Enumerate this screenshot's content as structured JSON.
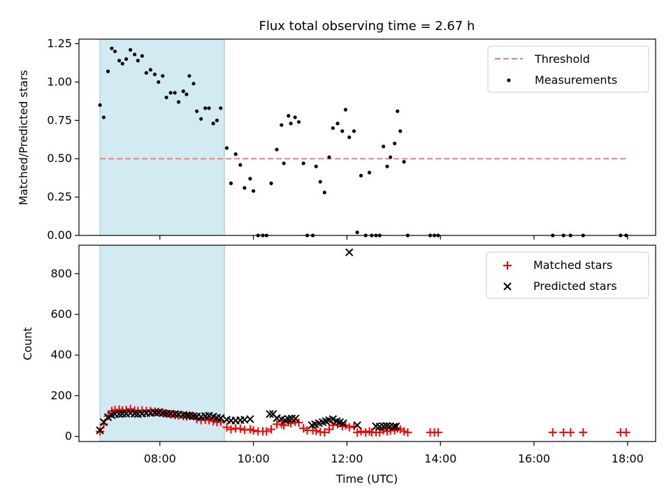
{
  "chart_data": {
    "title": "Flux total observing time = 2.67 h",
    "xlabel": "Time (UTC)",
    "x_unit": "hours UTC",
    "xlim": [
      6.27,
      18.6
    ],
    "x_ticks": [
      8,
      10,
      12,
      14,
      16,
      18
    ],
    "x_tick_labels": [
      "08:00",
      "10:00",
      "12:00",
      "14:00",
      "16:00",
      "18:00"
    ],
    "shaded_interval": {
      "start": 6.72,
      "end": 9.38,
      "color": "#add8e6"
    },
    "panels": [
      {
        "type": "scatter",
        "ylabel": "Matched/Predicted stars",
        "ylim": [
          0,
          1.28
        ],
        "y_ticks": [
          0.0,
          0.25,
          0.5,
          0.75,
          1.0,
          1.25
        ],
        "y_tick_labels": [
          "0.00",
          "0.25",
          "0.50",
          "0.75",
          "1.00",
          "1.25"
        ],
        "legend_position": "top-right",
        "threshold": {
          "name": "Threshold",
          "value": 0.5,
          "x_range": [
            6.72,
            17.98
          ],
          "color": "#f08080"
        },
        "series": [
          {
            "name": "Measurements",
            "marker": "dot",
            "color": "#000000",
            "x": [
              6.72,
              6.8,
              6.89,
              6.97,
              7.04,
              7.13,
              7.2,
              7.28,
              7.37,
              7.46,
              7.53,
              7.62,
              7.71,
              7.8,
              7.89,
              7.97,
              8.06,
              8.14,
              8.23,
              8.32,
              8.4,
              8.5,
              8.57,
              8.63,
              8.72,
              8.79,
              8.88,
              8.97,
              9.05,
              9.14,
              9.22,
              9.3,
              9.43,
              9.52,
              9.62,
              9.72,
              9.81,
              9.93,
              10.0,
              10.1,
              10.2,
              10.28,
              10.38,
              10.5,
              10.6,
              10.65,
              10.75,
              10.8,
              10.89,
              10.97,
              11.07,
              11.15,
              11.27,
              11.34,
              11.43,
              11.52,
              11.62,
              11.7,
              11.8,
              11.9,
              11.97,
              12.05,
              12.15,
              12.22,
              12.3,
              12.4,
              12.48,
              12.53,
              12.62,
              12.7,
              12.78,
              12.86,
              12.93,
              13.02,
              13.08,
              13.14,
              13.22,
              13.3,
              13.78,
              13.87,
              13.95,
              16.4,
              16.63,
              16.78,
              17.05,
              17.85,
              17.97
            ],
            "values": [
              0.85,
              0.77,
              1.07,
              1.22,
              1.2,
              1.14,
              1.12,
              1.15,
              1.21,
              1.18,
              1.14,
              1.17,
              1.06,
              1.08,
              1.05,
              1.0,
              1.04,
              0.9,
              0.93,
              0.93,
              0.87,
              0.94,
              0.92,
              1.04,
              0.99,
              0.81,
              0.76,
              0.83,
              0.83,
              0.73,
              0.75,
              0.83,
              0.57,
              0.34,
              0.53,
              0.46,
              0.31,
              0.37,
              0.29,
              0.0,
              0.0,
              0.0,
              0.34,
              0.56,
              0.72,
              0.47,
              0.78,
              0.73,
              0.77,
              0.74,
              0.47,
              0.0,
              0.0,
              0.45,
              0.35,
              0.28,
              0.51,
              0.7,
              0.73,
              0.68,
              0.82,
              0.64,
              0.68,
              0.02,
              0.39,
              0.0,
              0.41,
              0.0,
              0.0,
              0.0,
              0.58,
              0.45,
              0.51,
              0.6,
              0.81,
              0.68,
              0.48,
              0.0,
              0.0,
              0.0,
              0.0,
              0.0,
              0.0,
              0.0,
              0.0,
              0.0,
              0.0
            ]
          }
        ]
      },
      {
        "type": "scatter",
        "ylabel": "Count",
        "ylim": [
          -25,
          940
        ],
        "y_ticks": [
          0,
          200,
          400,
          600,
          800
        ],
        "y_tick_labels": [
          "0",
          "200",
          "400",
          "600",
          "800"
        ],
        "legend_position": "top-right",
        "series": [
          {
            "name": "Matched stars",
            "marker": "plus",
            "color": "#ff0000",
            "x": [
              6.72,
              6.8,
              6.89,
              6.97,
              7.04,
              7.13,
              7.2,
              7.28,
              7.37,
              7.46,
              7.53,
              7.62,
              7.71,
              7.8,
              7.89,
              7.97,
              8.06,
              8.14,
              8.23,
              8.32,
              8.4,
              8.5,
              8.57,
              8.63,
              8.72,
              8.79,
              8.88,
              8.97,
              9.05,
              9.14,
              9.22,
              9.3,
              9.43,
              9.52,
              9.62,
              9.72,
              9.81,
              9.93,
              10.0,
              10.1,
              10.2,
              10.28,
              10.38,
              10.5,
              10.6,
              10.65,
              10.75,
              10.8,
              10.89,
              10.97,
              11.07,
              11.15,
              11.27,
              11.34,
              11.43,
              11.52,
              11.62,
              11.7,
              11.8,
              11.9,
              11.97,
              12.05,
              12.15,
              12.22,
              12.3,
              12.4,
              12.48,
              12.53,
              12.62,
              12.7,
              12.78,
              12.86,
              12.93,
              13.02,
              13.08,
              13.14,
              13.22,
              13.3,
              13.78,
              13.87,
              13.95,
              16.4,
              16.63,
              16.78,
              17.05,
              17.85,
              17.97
            ],
            "values": [
              25,
              60,
              100,
              125,
              130,
              132,
              128,
              130,
              135,
              128,
              125,
              128,
              125,
              125,
              122,
              120,
              118,
              112,
              108,
              105,
              103,
              100,
              98,
              102,
              100,
              85,
              80,
              82,
              80,
              75,
              70,
              72,
              45,
              35,
              40,
              38,
              32,
              35,
              30,
              25,
              25,
              25,
              35,
              60,
              60,
              55,
              70,
              65,
              72,
              68,
              40,
              30,
              30,
              28,
              22,
              20,
              35,
              55,
              60,
              50,
              55,
              45,
              50,
              20,
              25,
              20,
              25,
              20,
              20,
              20,
              30,
              25,
              28,
              30,
              40,
              35,
              25,
              20,
              20,
              20,
              20,
              20,
              20,
              20,
              20,
              20,
              20
            ]
          },
          {
            "name": "Predicted stars",
            "marker": "x",
            "color": "#000000",
            "x": [
              6.72,
              6.8,
              6.89,
              6.97,
              7.04,
              7.13,
              7.2,
              7.28,
              7.37,
              7.46,
              7.53,
              7.62,
              7.71,
              7.8,
              7.89,
              7.97,
              8.06,
              8.14,
              8.23,
              8.32,
              8.4,
              8.5,
              8.57,
              8.63,
              8.72,
              8.79,
              8.88,
              8.97,
              9.05,
              9.14,
              9.22,
              9.3,
              9.43,
              9.52,
              9.62,
              9.72,
              9.81,
              9.93,
              10.35,
              10.42,
              10.5,
              10.6,
              10.68,
              10.75,
              10.82,
              10.9,
              11.25,
              11.32,
              11.4,
              11.48,
              11.55,
              11.62,
              11.7,
              11.78,
              11.85,
              11.92,
              12.05,
              12.22,
              12.62,
              12.7,
              12.78,
              12.85,
              12.92,
              13.0,
              13.05
            ],
            "values": [
              30,
              70,
              95,
              105,
              110,
              110,
              112,
              112,
              115,
              112,
              110,
              112,
              115,
              115,
              118,
              118,
              115,
              112,
              112,
              110,
              108,
              106,
              104,
              102,
              100,
              98,
              96,
              100,
              102,
              98,
              92,
              90,
              82,
              78,
              78,
              80,
              82,
              85,
              110,
              110,
              90,
              85,
              80,
              85,
              88,
              88,
              55,
              60,
              65,
              70,
              75,
              80,
              85,
              75,
              70,
              65,
              905,
              55,
              50,
              48,
              50,
              52,
              50,
              48,
              50
            ]
          }
        ]
      }
    ]
  },
  "legend": {
    "threshold_label": "Threshold",
    "measurements_label": "Measurements",
    "matched_label": "Matched stars",
    "predicted_label": "Predicted stars"
  }
}
